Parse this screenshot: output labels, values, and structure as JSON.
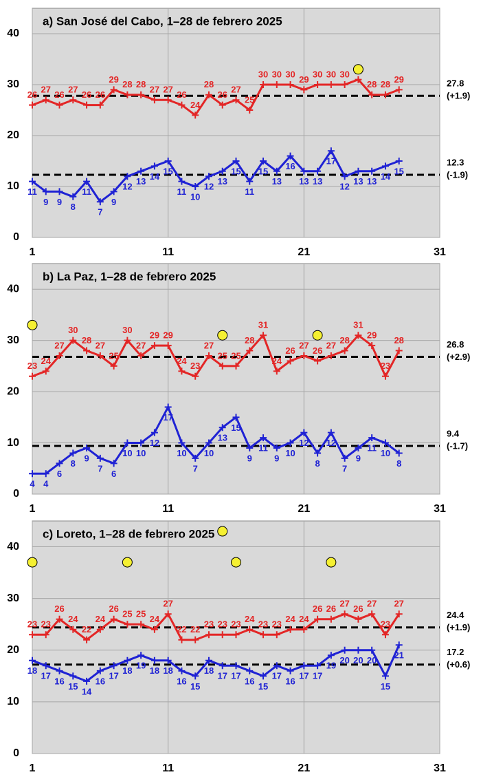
{
  "chart_data": [
    {
      "type": "line",
      "title": "a) San José del Cabo, 1–28 de febrero 2025",
      "x": [
        1,
        2,
        3,
        4,
        5,
        6,
        7,
        8,
        9,
        10,
        11,
        12,
        13,
        14,
        15,
        16,
        17,
        18,
        19,
        20,
        21,
        22,
        23,
        24,
        25,
        26,
        27,
        28
      ],
      "series": [
        {
          "color": "#e32626",
          "values": [
            26,
            27,
            26,
            27,
            26,
            26,
            29,
            28,
            28,
            27,
            27,
            26,
            24,
            28,
            26,
            27,
            25,
            30,
            30,
            30,
            29,
            30,
            30,
            30,
            31,
            28,
            28,
            29
          ]
        },
        {
          "color": "#1f22d4",
          "values": [
            11,
            9,
            9,
            8,
            11,
            7,
            9,
            12,
            13,
            14,
            15,
            11,
            10,
            12,
            13,
            15,
            11,
            15,
            13,
            16,
            13,
            13,
            17,
            12,
            13,
            13,
            14,
            15
          ]
        }
      ],
      "hlines": [
        {
          "value": 27.8,
          "anomaly": "(+1.9)"
        },
        {
          "value": 12.3,
          "anomaly": "(-1.9)"
        }
      ],
      "points": {
        "color": "#f5f032",
        "x": [
          25
        ],
        "values": [
          33
        ]
      },
      "xlim": [
        1,
        31
      ],
      "xticks": [
        1,
        11,
        21,
        31
      ],
      "ylim": [
        0,
        45
      ],
      "yticks": [
        0,
        10,
        20,
        30,
        40
      ],
      "grid": true
    },
    {
      "type": "line",
      "title": "b) La Paz, 1–28 de febrero 2025",
      "x": [
        1,
        2,
        3,
        4,
        5,
        6,
        7,
        8,
        9,
        10,
        11,
        12,
        13,
        14,
        15,
        16,
        17,
        18,
        19,
        20,
        21,
        22,
        23,
        24,
        25,
        26,
        27,
        28
      ],
      "series": [
        {
          "color": "#e32626",
          "values": [
            23,
            24,
            27,
            30,
            28,
            27,
            25,
            30,
            27,
            29,
            29,
            24,
            23,
            27,
            25,
            25,
            28,
            31,
            24,
            26,
            27,
            26,
            27,
            28,
            31,
            29,
            23,
            28
          ]
        },
        {
          "color": "#1f22d4",
          "values": [
            4,
            4,
            6,
            8,
            9,
            7,
            6,
            10,
            10,
            12,
            17,
            10,
            7,
            10,
            13,
            15,
            9,
            11,
            9,
            10,
            12,
            8,
            12,
            7,
            9,
            11,
            10,
            8
          ]
        }
      ],
      "hlines": [
        {
          "value": 26.8,
          "anomaly": "(+2.9)"
        },
        {
          "value": 9.4,
          "anomaly": "(-1.7)"
        }
      ],
      "points": {
        "color": "#f5f032",
        "x": [
          1,
          15,
          22
        ],
        "values": [
          33,
          31,
          31
        ]
      },
      "xlim": [
        1,
        31
      ],
      "xticks": [
        1,
        11,
        21,
        31
      ],
      "ylim": [
        0,
        45
      ],
      "yticks": [
        0,
        10,
        20,
        30,
        40
      ],
      "grid": true
    },
    {
      "type": "line",
      "title": "c) Loreto, 1–28 de febrero 2025",
      "x": [
        1,
        2,
        3,
        4,
        5,
        6,
        7,
        8,
        9,
        10,
        11,
        12,
        13,
        14,
        15,
        16,
        17,
        18,
        19,
        20,
        21,
        22,
        23,
        24,
        25,
        26,
        27,
        28
      ],
      "series": [
        {
          "color": "#e32626",
          "values": [
            23,
            23,
            26,
            24,
            22,
            24,
            26,
            25,
            25,
            24,
            27,
            22,
            22,
            23,
            23,
            23,
            24,
            23,
            23,
            24,
            24,
            26,
            26,
            27,
            26,
            27,
            23,
            27
          ]
        },
        {
          "color": "#1f22d4",
          "values": [
            18,
            17,
            16,
            15,
            14,
            16,
            17,
            18,
            19,
            18,
            18,
            16,
            15,
            18,
            17,
            17,
            16,
            15,
            17,
            16,
            17,
            17,
            19,
            20,
            20,
            20,
            15,
            21
          ]
        }
      ],
      "hlines": [
        {
          "value": 24.4,
          "anomaly": "(+1.9)"
        },
        {
          "value": 17.2,
          "anomaly": "(+0.6)"
        }
      ],
      "points": {
        "color": "#f5f032",
        "x": [
          1,
          8,
          15,
          16,
          23
        ],
        "values": [
          37,
          37,
          43,
          37,
          37
        ]
      },
      "xlim": [
        1,
        31
      ],
      "xticks": [
        1,
        11,
        21,
        31
      ],
      "ylim": [
        0,
        45
      ],
      "yticks": [
        0,
        10,
        20,
        30,
        40
      ],
      "grid": true
    }
  ]
}
